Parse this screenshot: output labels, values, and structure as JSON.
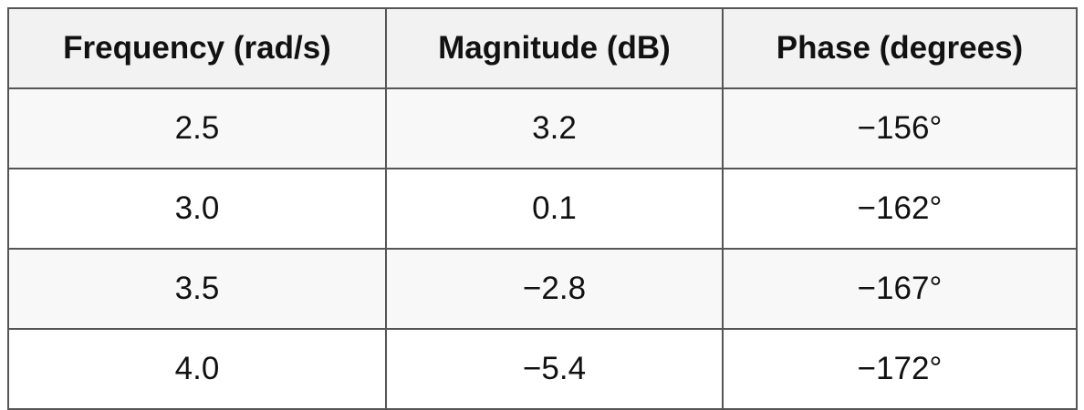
{
  "table": {
    "header": [
      "Frequency (rad/s)",
      "Magnitude (dB)",
      "Phase (degrees)"
    ],
    "rows": [
      [
        "2.5",
        "3.2",
        "−156°"
      ],
      [
        "3.0",
        "0.1",
        "−162°"
      ],
      [
        "3.5",
        "−2.8",
        "−167°"
      ],
      [
        "4.0",
        "−5.4",
        "−172°"
      ]
    ]
  }
}
